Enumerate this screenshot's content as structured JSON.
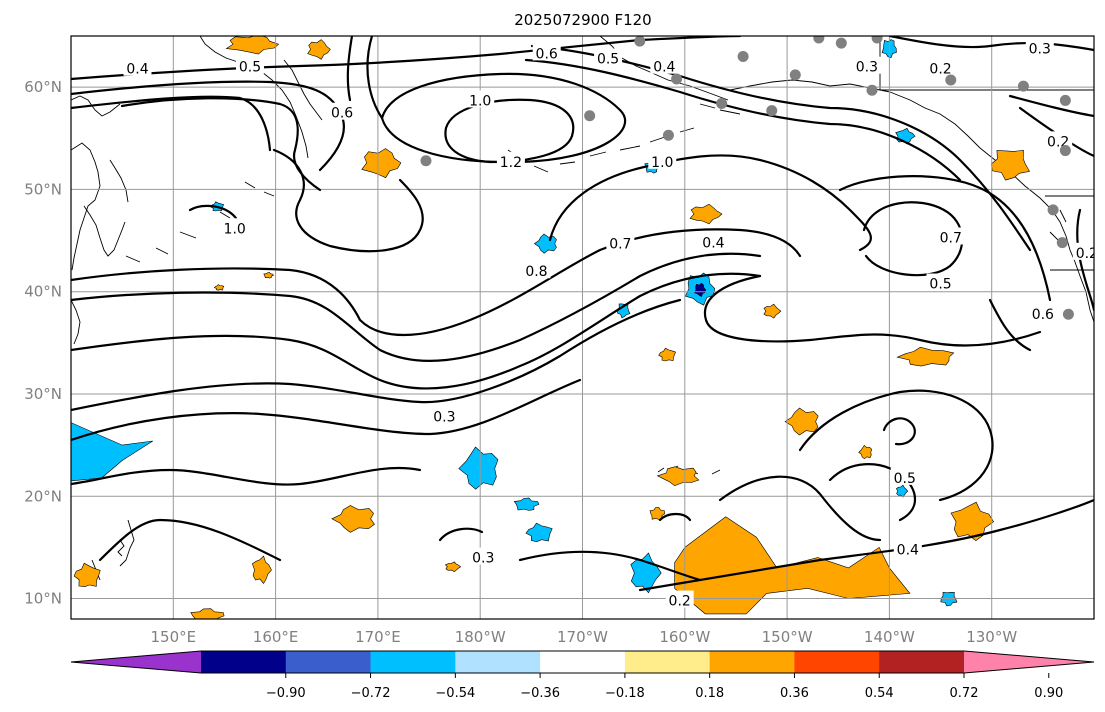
{
  "title": "2025072900 F120",
  "map": {
    "lon_ticks": [
      "150°E",
      "160°E",
      "170°E",
      "180°W",
      "170°W",
      "160°W",
      "150°W",
      "140°W",
      "130°W"
    ],
    "lat_ticks": [
      "10°N",
      "20°N",
      "30°N",
      "40°N",
      "50°N",
      "60°N"
    ],
    "lon_range": [
      140,
      240
    ],
    "lat_range": [
      8,
      65
    ]
  },
  "colorbar": {
    "ticks": [
      "−0.90",
      "−0.72",
      "−0.54",
      "−0.36",
      "−0.18",
      "0.18",
      "0.36",
      "0.54",
      "0.72",
      "0.90"
    ],
    "colors": [
      "#9a32cd",
      "#00008b",
      "#3a5fcd",
      "#00bfff",
      "#b0e2ff",
      "#ffffff",
      "#ffec8b",
      "#ffa500",
      "#ff4500",
      "#b22222",
      "#ff82ab"
    ]
  },
  "contour_labels": [
    {
      "text": "0.4",
      "lon": 146.5,
      "lat": 61.8
    },
    {
      "text": "0.5",
      "lon": 157.5,
      "lat": 62.0
    },
    {
      "text": "0.6",
      "lon": 166.5,
      "lat": 57.5
    },
    {
      "text": "0.6",
      "lon": 186.5,
      "lat": 63.3
    },
    {
      "text": "0.5",
      "lon": 192.5,
      "lat": 62.8
    },
    {
      "text": "0.4",
      "lon": 198.0,
      "lat": 62.0
    },
    {
      "text": "1.0",
      "lon": 180.0,
      "lat": 58.7
    },
    {
      "text": "1.2",
      "lon": 183.0,
      "lat": 52.7
    },
    {
      "text": "1.0",
      "lon": 197.8,
      "lat": 52.7
    },
    {
      "text": "1.0",
      "lon": 156.0,
      "lat": 46.2
    },
    {
      "text": "0.7",
      "lon": 193.7,
      "lat": 44.7
    },
    {
      "text": "0.4",
      "lon": 202.8,
      "lat": 44.8
    },
    {
      "text": "0.8",
      "lon": 185.5,
      "lat": 42.0
    },
    {
      "text": "0.3",
      "lon": 176.5,
      "lat": 27.8
    },
    {
      "text": "0.3",
      "lon": 217.8,
      "lat": 62.0
    },
    {
      "text": "0.2",
      "lon": 225.0,
      "lat": 61.8
    },
    {
      "text": "0.3",
      "lon": 234.7,
      "lat": 63.8
    },
    {
      "text": "0.2",
      "lon": 236.5,
      "lat": 54.7
    },
    {
      "text": "0.7",
      "lon": 226.0,
      "lat": 45.3
    },
    {
      "text": "0.5",
      "lon": 225.0,
      "lat": 40.8
    },
    {
      "text": "0.6",
      "lon": 235.0,
      "lat": 37.8
    },
    {
      "text": "0.2",
      "lon": 239.3,
      "lat": 43.8
    },
    {
      "text": "0.5",
      "lon": 221.5,
      "lat": 21.8
    },
    {
      "text": "0.4",
      "lon": 221.8,
      "lat": 14.8
    },
    {
      "text": "0.3",
      "lon": 180.3,
      "lat": 14.0
    },
    {
      "text": "0.2",
      "lon": 199.5,
      "lat": 9.8
    }
  ],
  "stations": [
    {
      "lon": 195.6,
      "lat": 64.5
    },
    {
      "lon": 199.2,
      "lat": 60.8
    },
    {
      "lon": 205.7,
      "lat": 63.0
    },
    {
      "lon": 213.1,
      "lat": 64.8
    },
    {
      "lon": 215.3,
      "lat": 64.3
    },
    {
      "lon": 218.8,
      "lat": 64.8
    },
    {
      "lon": 210.8,
      "lat": 61.2
    },
    {
      "lon": 218.3,
      "lat": 59.7
    },
    {
      "lon": 226.0,
      "lat": 60.7
    },
    {
      "lon": 233.1,
      "lat": 60.1
    },
    {
      "lon": 237.2,
      "lat": 58.7
    },
    {
      "lon": 237.2,
      "lat": 53.8
    },
    {
      "lon": 203.6,
      "lat": 58.4
    },
    {
      "lon": 208.5,
      "lat": 57.7
    },
    {
      "lon": 190.7,
      "lat": 57.2
    },
    {
      "lon": 198.4,
      "lat": 55.3
    },
    {
      "lon": 174.7,
      "lat": 52.8
    },
    {
      "lon": 236.0,
      "lat": 48.0
    },
    {
      "lon": 236.9,
      "lat": 44.8
    },
    {
      "lon": 237.5,
      "lat": 37.8
    }
  ],
  "anomaly_patches": [
    {
      "level": "0.36",
      "lon": 157.7,
      "lat": 64.2,
      "rlon": 2.8,
      "rlat": 1.0
    },
    {
      "level": "0.36",
      "lon": 164.2,
      "lat": 63.7,
      "rlon": 1.2,
      "rlat": 1.0
    },
    {
      "level": "0.36",
      "lon": 170.3,
      "lat": 52.6,
      "rlon": 2.1,
      "rlat": 1.5
    },
    {
      "level": "0.36",
      "lon": 202.0,
      "lat": 47.6,
      "rlon": 1.7,
      "rlat": 1.0
    },
    {
      "level": "0.36",
      "lon": 231.8,
      "lat": 52.5,
      "rlon": 2.1,
      "rlat": 1.7
    },
    {
      "level": "0.36",
      "lon": 208.5,
      "lat": 38.1,
      "rlon": 0.9,
      "rlat": 0.7
    },
    {
      "level": "0.36",
      "lon": 198.3,
      "lat": 33.8,
      "rlon": 0.9,
      "rlat": 0.7
    },
    {
      "level": "0.36",
      "lon": 223.7,
      "lat": 33.6,
      "rlon": 3.0,
      "rlat": 1.0
    },
    {
      "level": "0.36",
      "lon": 211.6,
      "lat": 27.3,
      "rlon": 1.8,
      "rlat": 1.4
    },
    {
      "level": "0.36",
      "lon": 217.7,
      "lat": 24.3,
      "rlon": 0.7,
      "rlat": 0.7
    },
    {
      "level": "0.36",
      "lon": 199.5,
      "lat": 22.0,
      "rlon": 2.2,
      "rlat": 1.0
    },
    {
      "level": "0.36",
      "lon": 197.3,
      "lat": 18.3,
      "rlon": 0.8,
      "rlat": 0.7
    },
    {
      "level": "0.36",
      "lon": 228.0,
      "lat": 17.5,
      "rlon": 2.2,
      "rlat": 2.0
    },
    {
      "level": "0.36",
      "lon": 167.8,
      "lat": 17.8,
      "rlon": 2.3,
      "rlat": 1.4
    },
    {
      "level": "0.36",
      "lon": 158.6,
      "lat": 12.8,
      "rlon": 1.0,
      "rlat": 1.4
    },
    {
      "level": "0.36",
      "lon": 141.6,
      "lat": 12.2,
      "rlon": 1.4,
      "rlat": 1.3
    },
    {
      "level": "0.36",
      "lon": 177.3,
      "lat": 13.1,
      "rlon": 0.8,
      "rlat": 0.5
    },
    {
      "level": "0.36",
      "lon": 153.3,
      "lat": 8.3,
      "rlon": 1.8,
      "rlat": 0.8
    },
    {
      "level": "0.36",
      "lon": 154.5,
      "lat": 40.4,
      "rlon": 0.5,
      "rlat": 0.3
    },
    {
      "level": "0.36",
      "lon": 159.3,
      "lat": 41.6,
      "rlon": 0.5,
      "rlat": 0.3
    },
    {
      "level": "-0.36",
      "lon": 180.0,
      "lat": 22.7,
      "rlon": 2.1,
      "rlat": 2.2
    },
    {
      "level": "-0.36",
      "lon": 184.5,
      "lat": 19.2,
      "rlon": 1.3,
      "rlat": 0.7
    },
    {
      "level": "-0.36",
      "lon": 185.8,
      "lat": 16.4,
      "rlon": 1.4,
      "rlat": 1.0
    },
    {
      "level": "-0.36",
      "lon": 196.1,
      "lat": 12.5,
      "rlon": 1.6,
      "rlat": 2.0
    },
    {
      "level": "-0.36",
      "lon": 201.5,
      "lat": 40.3,
      "rlon": 1.6,
      "rlat": 1.7
    },
    {
      "level": "-0.36",
      "lon": 186.5,
      "lat": 44.7,
      "rlon": 1.2,
      "rlat": 1.0
    },
    {
      "level": "-0.36",
      "lon": 194.0,
      "lat": 38.2,
      "rlon": 0.7,
      "rlat": 0.8
    },
    {
      "level": "-0.36",
      "lon": 196.8,
      "lat": 52.2,
      "rlon": 0.8,
      "rlat": 0.7
    },
    {
      "level": "-0.36",
      "lon": 221.5,
      "lat": 55.2,
      "rlon": 1.0,
      "rlat": 0.8
    },
    {
      "level": "-0.36",
      "lon": 220.0,
      "lat": 63.8,
      "rlon": 0.8,
      "rlat": 1.0
    },
    {
      "level": "-0.36",
      "lon": 221.2,
      "lat": 20.5,
      "rlon": 0.6,
      "rlat": 0.6
    },
    {
      "level": "-0.36",
      "lon": 225.8,
      "lat": 10.0,
      "rlon": 0.9,
      "rlat": 0.8
    },
    {
      "level": "-0.36",
      "lon": 154.3,
      "lat": 48.3,
      "rlon": 0.7,
      "rlat": 0.5
    },
    {
      "level": "-0.72",
      "lon": 201.5,
      "lat": 40.2,
      "rlon": 0.6,
      "rlat": 0.7
    }
  ]
}
